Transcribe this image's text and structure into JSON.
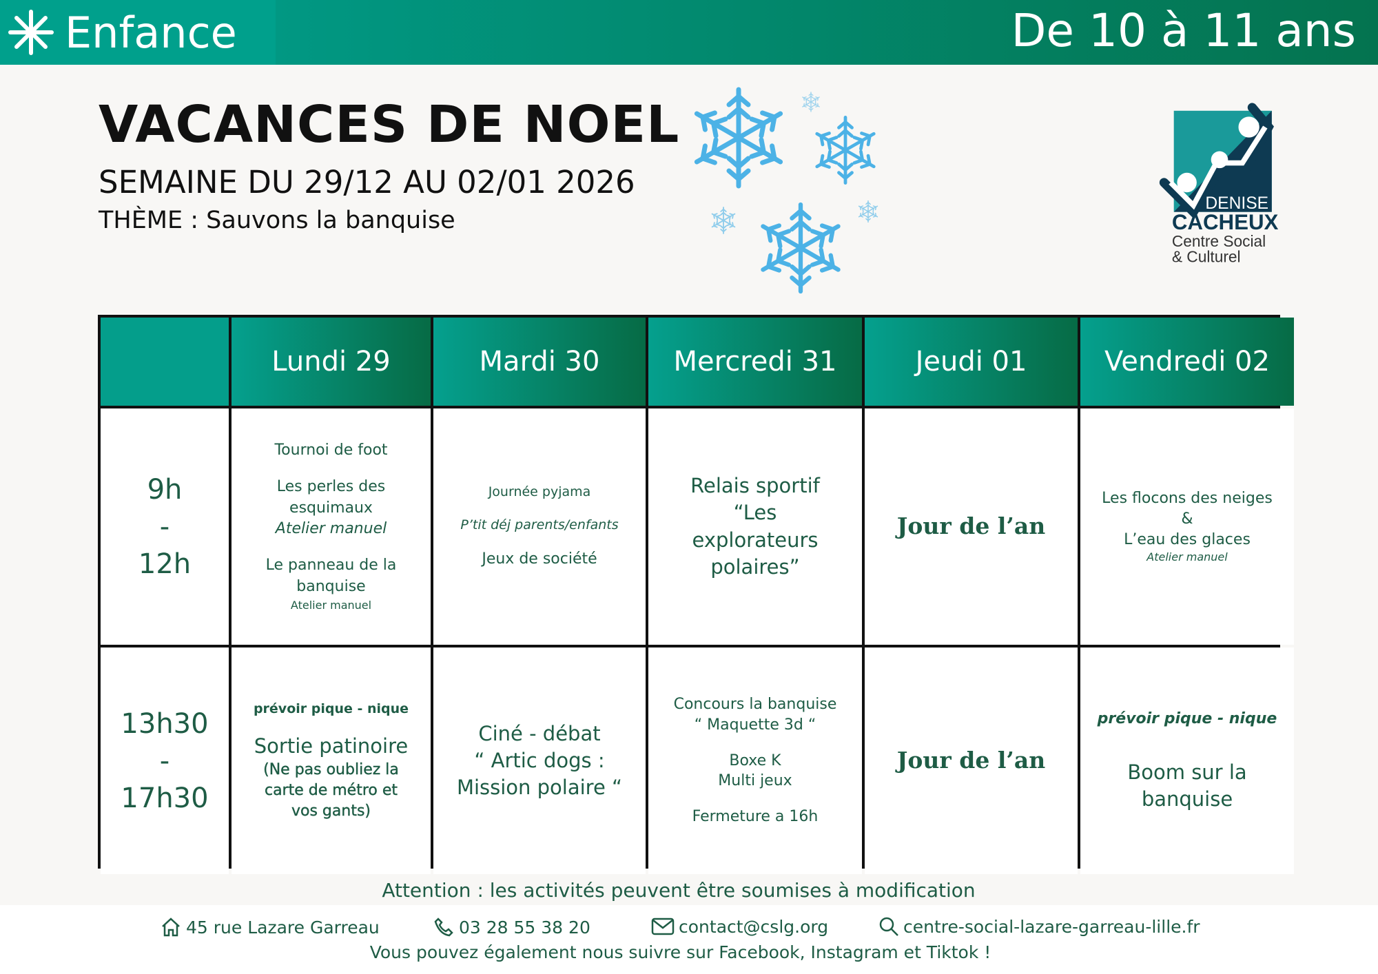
{
  "header": {
    "category": "Enfance",
    "age_range": "De 10 à 11 ans",
    "accent": "#00a08c",
    "accent_dark": "#04734f"
  },
  "title": "VACANCES DE NOEL",
  "subtitle": "SEMAINE DU 29/12 AU 02/01 2026",
  "theme": "THÈME : Sauvons la banquise",
  "logo": {
    "line1": "DENISE",
    "line2": "CACHEUX",
    "line3": "Centre Social",
    "line4": "& Culturel"
  },
  "table": {
    "days": [
      "Lundi 29",
      "Mardi 30",
      "Mercredi 31",
      "Jeudi 01",
      "Vendredi 02"
    ],
    "slots": [
      {
        "start": "9h",
        "sep": "-",
        "end": "12h"
      },
      {
        "start": "13h30",
        "sep": "-",
        "end": "17h30"
      }
    ],
    "morning": {
      "lundi": [
        "Tournoi de foot",
        "Les perles des esquimaux",
        "Atelier manuel",
        "Le panneau de la banquise",
        "Atelier manuel"
      ],
      "mardi": [
        "Journée pyjama",
        "P’tit déj parents/enfants",
        "Jeux de société"
      ],
      "mercredi": "Relais sportif “Les explorateurs polaires”",
      "jeudi": "Jour de l’an",
      "vendredi": [
        "Les flocons des neiges",
        "&",
        "L’eau des glaces",
        "Atelier manuel"
      ]
    },
    "afternoon": {
      "lundi": [
        "prévoir pique - nique",
        "Sortie patinoire",
        "(Ne pas oubliez la carte de métro et vos gants)"
      ],
      "mardi": [
        "Ciné - débat",
        "“ Artic dogs :",
        "Mission polaire “"
      ],
      "mercredi": [
        "Concours la banquise",
        "“ Maquette 3d “",
        "Boxe K",
        "Multi jeux",
        "Fermeture a 16h"
      ],
      "jeudi": "Jour de l’an",
      "vendredi": [
        "prévoir pique - nique",
        "Boom sur la banquise"
      ]
    }
  },
  "notice": "Attention : les activités peuvent être soumises à modification",
  "footer": {
    "address": "45 rue Lazare Garreau",
    "phone": "03 28 55 38 20",
    "email": "contact@cslg.org",
    "website": "centre-social-lazare-garreau-lille.fr",
    "social": "Vous pouvez également nous suivre sur Facebook, Instagram et Tiktok !"
  }
}
